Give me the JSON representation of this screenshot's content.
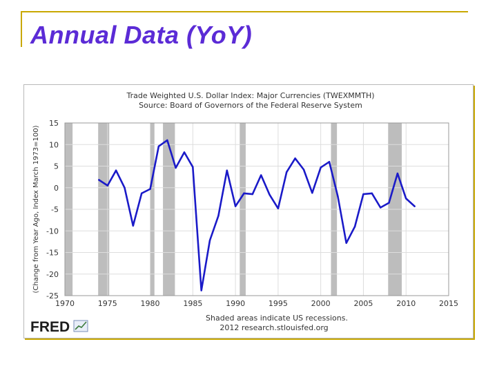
{
  "slide": {
    "title": "Annual Data (YoY)"
  },
  "colors": {
    "title": "#5b2bd6",
    "frame": "#c9a800",
    "series": "#1a1ac8",
    "recession": "#bdbdbd"
  },
  "chart_data": {
    "type": "line",
    "title_line1": "Trade Weighted U.S. Dollar Index: Major Currencies (TWEXMMTH)",
    "title_line2": "Source: Board of Governors of the Federal Reserve System",
    "ylabel": "(Change from Year Ago, Index March 1973=100)",
    "xlabel": "",
    "xlim": [
      1970,
      2015
    ],
    "ylim": [
      -25,
      15
    ],
    "x_ticks": [
      1970,
      1975,
      1980,
      1985,
      1990,
      1995,
      2000,
      2005,
      2010,
      2015
    ],
    "y_ticks": [
      15,
      10,
      5,
      0,
      -5,
      -10,
      -15,
      -20,
      -25
    ],
    "grid": true,
    "recessions": [
      [
        1969.9,
        1970.9
      ],
      [
        1973.9,
        1975.2
      ],
      [
        1980.0,
        1980.5
      ],
      [
        1981.5,
        1982.9
      ],
      [
        1990.5,
        1991.2
      ],
      [
        2001.2,
        2001.9
      ],
      [
        2007.9,
        2009.5
      ]
    ],
    "series": [
      {
        "name": "TWEXMMTH YoY % change",
        "x": [
          1974,
          1975,
          1976,
          1977,
          1978,
          1979,
          1980,
          1981,
          1982,
          1983,
          1984,
          1985,
          1986,
          1987,
          1988,
          1989,
          1990,
          1991,
          1992,
          1993,
          1994,
          1995,
          1996,
          1997,
          1998,
          1999,
          2000,
          2001,
          2002,
          2003,
          2004,
          2005,
          2006,
          2007,
          2008,
          2009,
          2010,
          2011
        ],
        "values": [
          1.8,
          0.5,
          4.0,
          0,
          -8.8,
          -1.3,
          -0.3,
          9.6,
          11.0,
          4.6,
          8.2,
          4.8,
          -23.8,
          -12.2,
          -6.5,
          4.0,
          -4.3,
          -1.3,
          -1.5,
          2.9,
          -1.6,
          -4.8,
          3.6,
          6.8,
          4.2,
          -1.2,
          4.7,
          6.0,
          -2.0,
          -12.8,
          -9.0,
          -1.5,
          -1.3,
          -4.6,
          -3.5,
          3.3,
          -2.5,
          -4.3
        ]
      }
    ],
    "footer_line1": "Shaded areas indicate US recessions.",
    "footer_line2": "2012 research.stlouisfed.org",
    "logo_text": "FRED"
  }
}
